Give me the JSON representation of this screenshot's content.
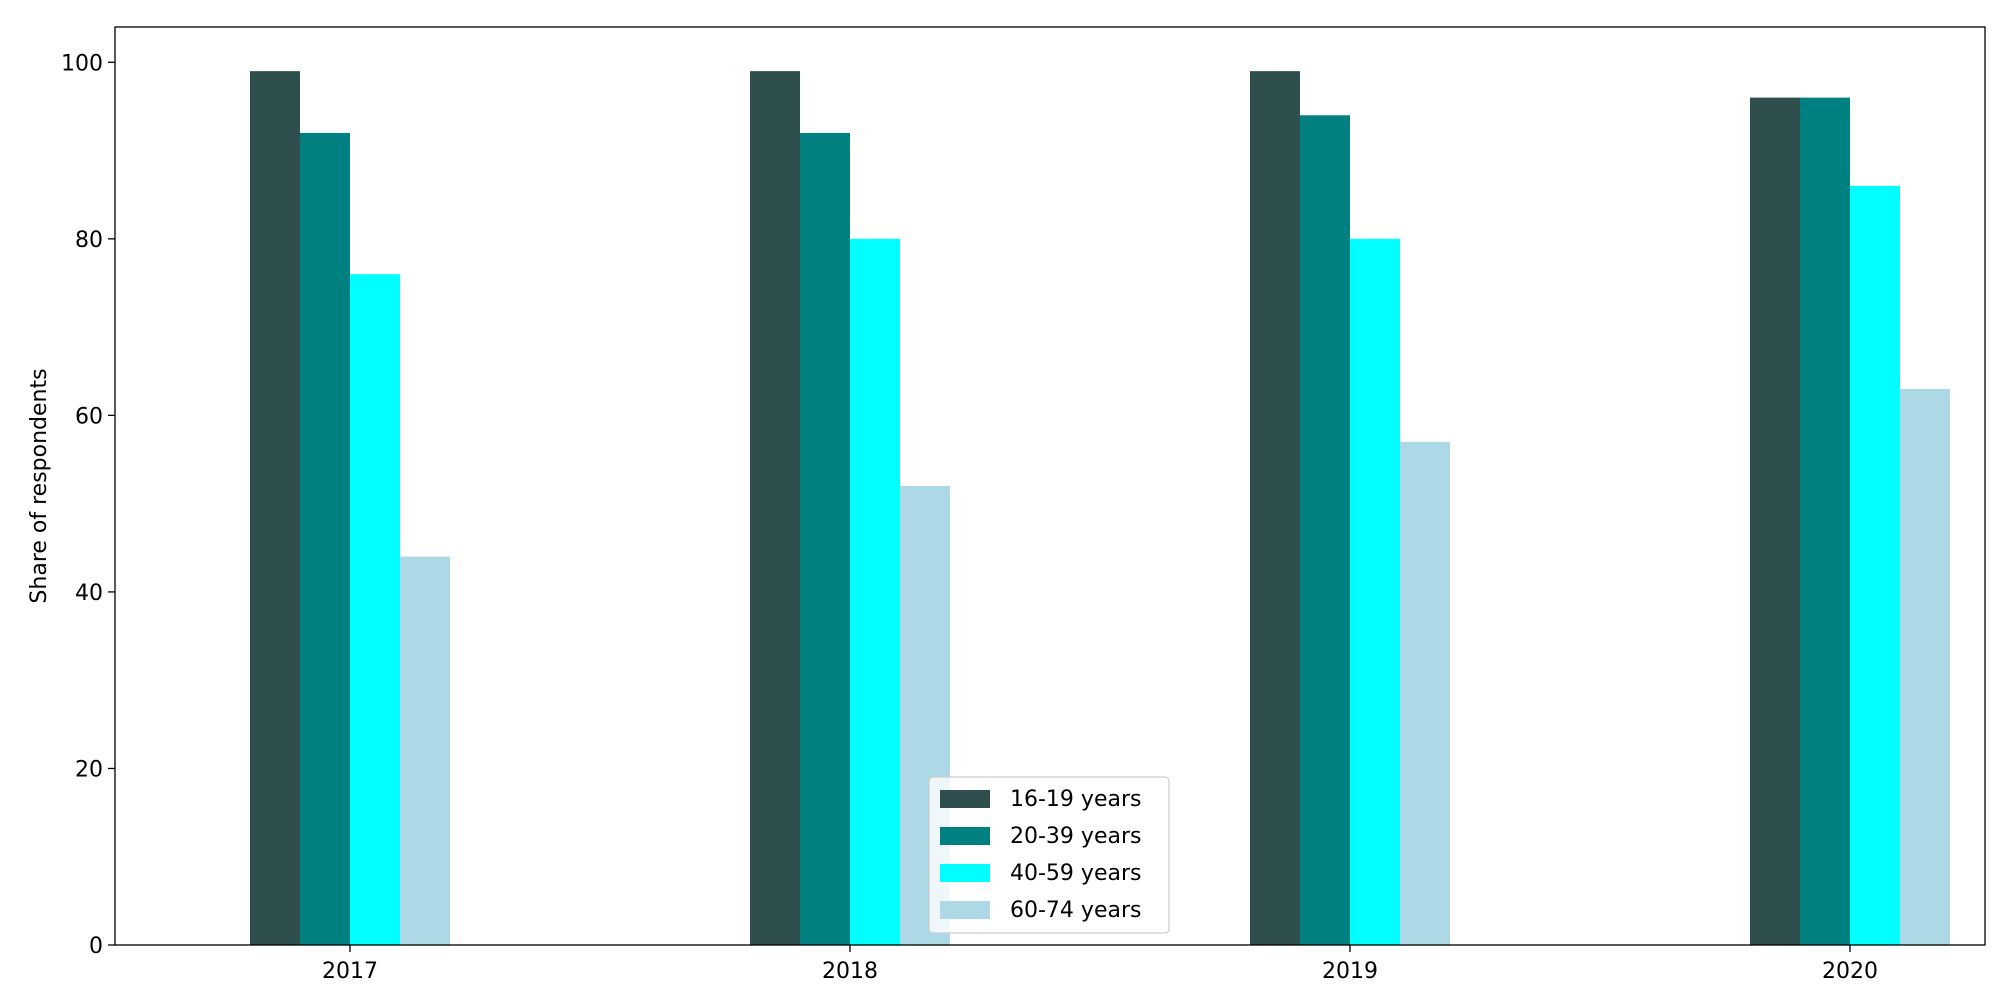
{
  "chart_data": {
    "type": "bar",
    "title": "",
    "xlabel": "",
    "ylabel": "Share of respondents",
    "categories": [
      "2017",
      "2018",
      "2019",
      "2020"
    ],
    "ylim": [
      0,
      104
    ],
    "yticks": [
      0,
      20,
      40,
      60,
      80,
      100
    ],
    "grid": false,
    "legend_position": "bottom-center",
    "series": [
      {
        "name": "16-19 years",
        "color": "#2f4f4f",
        "values": [
          99,
          99,
          99,
          96
        ]
      },
      {
        "name": "20-39 years",
        "color": "#008080",
        "values": [
          92,
          92,
          94,
          96
        ]
      },
      {
        "name": "40-59 years",
        "color": "#00ffff",
        "values": [
          76,
          80,
          80,
          86
        ]
      },
      {
        "name": "60-74 years",
        "color": "#add8e6",
        "values": [
          44,
          52,
          57,
          63
        ]
      }
    ]
  }
}
